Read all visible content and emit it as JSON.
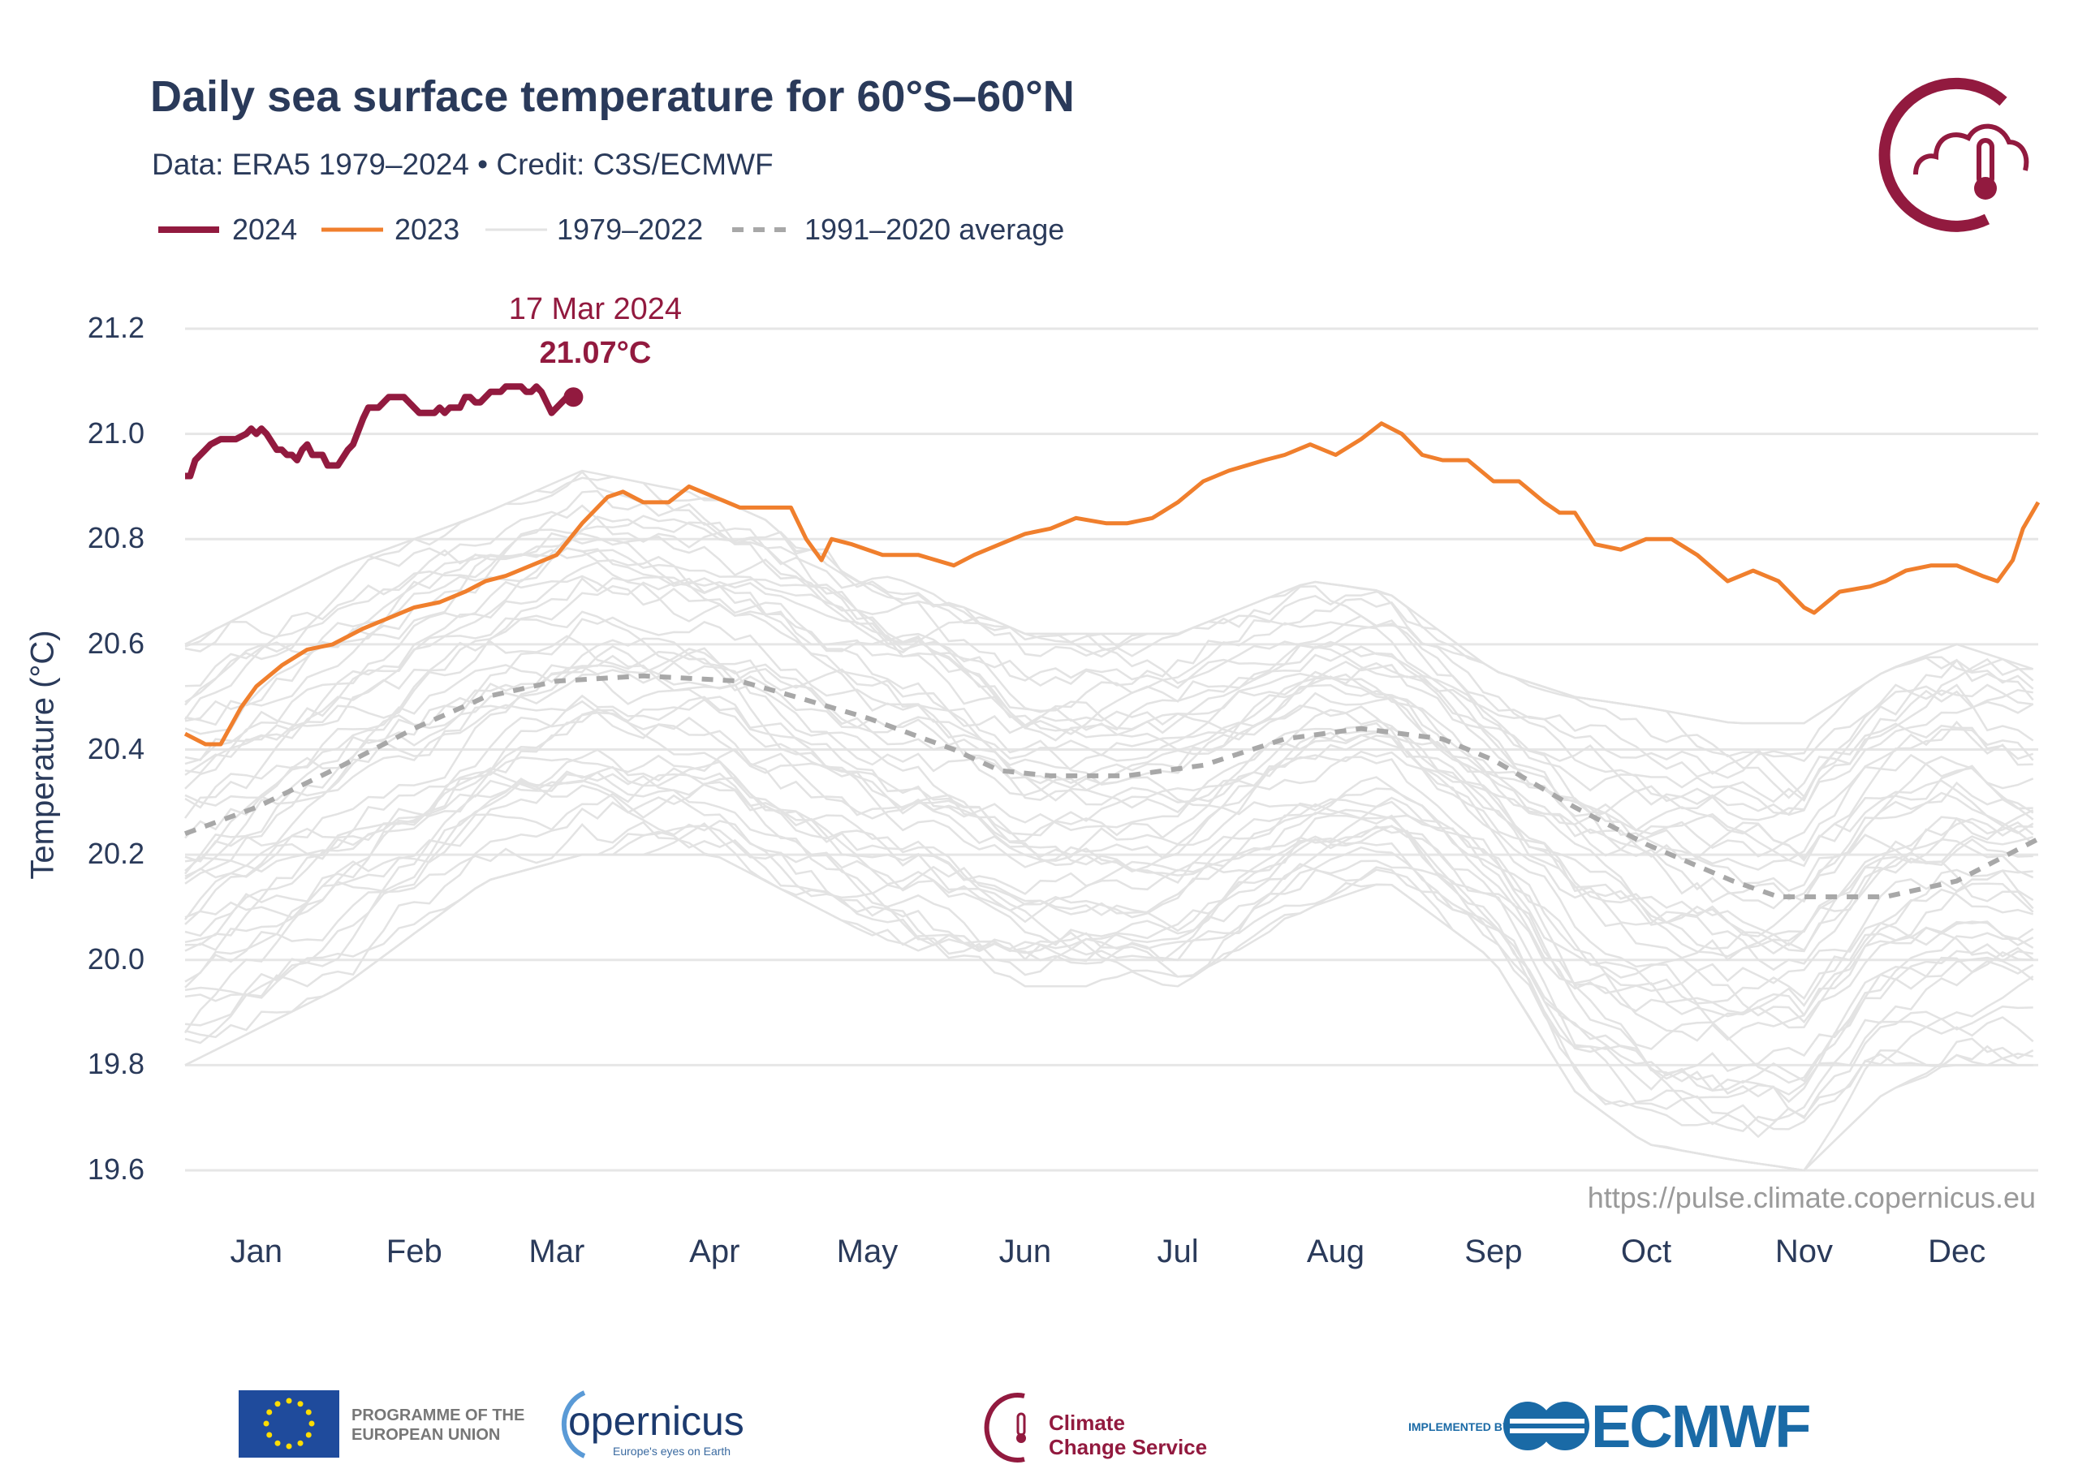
{
  "header": {
    "title": "Daily sea surface temperature for 60°S–60°N",
    "subtitle": "Data: ERA5 1979–2024 • Credit: C3S/ECMWF",
    "url": "https://pulse.climate.copernicus.eu"
  },
  "logos": {
    "c3s_emblem": "cloud-thermometer-crescent",
    "eu_text_1": "PROGRAMME OF THE",
    "eu_text_2": "EUROPEAN UNION",
    "copernicus": "opernicus",
    "copernicus_tagline": "Europe's eyes on Earth",
    "c3s_1": "Climate",
    "c3s_2": "Change Service",
    "ecmwf_prefix": "IMPLEMENTED BY",
    "ecmwf": "ECMWF"
  },
  "colors": {
    "s2024": "#921a3f",
    "s2023": "#f07f2d",
    "history": "#e3e3e3",
    "average": "#a8a8a8",
    "text": "#2a3a5a",
    "grid": "#e6e6e6"
  },
  "chart_data": {
    "type": "line",
    "title": "Daily sea surface temperature for 60°S–60°N",
    "ylabel": "Temperature (°C)",
    "xlabel": "",
    "ylim": [
      19.6,
      21.2
    ],
    "yticks": [
      "19.6",
      "19.8",
      "20.0",
      "20.2",
      "20.4",
      "20.6",
      "20.8",
      "21.0",
      "21.2"
    ],
    "xticks": [
      "Jan",
      "Feb",
      "Mar",
      "Apr",
      "May",
      "Jun",
      "Jul",
      "Aug",
      "Sep",
      "Oct",
      "Nov",
      "Dec"
    ],
    "grid": true,
    "legend_placement": "top-left",
    "legend": [
      "2024",
      "2023",
      "1979–2022",
      "1991–2020 average"
    ],
    "annotation": {
      "date": "17 Mar 2024",
      "value": "21.07°C",
      "point": [
        "2024-03-17",
        21.07
      ]
    },
    "series": [
      {
        "name": "2024",
        "style": "solid-thick",
        "points": [
          [
            "2024-01-01",
            20.92
          ],
          [
            "2024-01-02",
            20.92
          ],
          [
            "2024-01-03",
            20.95
          ],
          [
            "2024-01-04",
            20.96
          ],
          [
            "2024-01-06",
            20.98
          ],
          [
            "2024-01-08",
            20.99
          ],
          [
            "2024-01-11",
            20.99
          ],
          [
            "2024-01-13",
            21.0
          ],
          [
            "2024-01-14",
            21.01
          ],
          [
            "2024-01-15",
            21.0
          ],
          [
            "2024-01-16",
            21.01
          ],
          [
            "2024-01-17",
            21.0
          ],
          [
            "2024-01-19",
            20.97
          ],
          [
            "2024-01-20",
            20.97
          ],
          [
            "2024-01-21",
            20.96
          ],
          [
            "2024-01-22",
            20.96
          ],
          [
            "2024-01-23",
            20.95
          ],
          [
            "2024-01-24",
            20.97
          ],
          [
            "2024-01-25",
            20.98
          ],
          [
            "2024-01-26",
            20.96
          ],
          [
            "2024-01-28",
            20.96
          ],
          [
            "2024-01-29",
            20.94
          ],
          [
            "2024-01-31",
            20.94
          ],
          [
            "2024-02-02",
            20.97
          ],
          [
            "2024-02-03",
            20.98
          ],
          [
            "2024-02-05",
            21.03
          ],
          [
            "2024-02-06",
            21.05
          ],
          [
            "2024-02-08",
            21.05
          ],
          [
            "2024-02-10",
            21.07
          ],
          [
            "2024-02-13",
            21.07
          ],
          [
            "2024-02-16",
            21.04
          ],
          [
            "2024-02-19",
            21.04
          ],
          [
            "2024-02-20",
            21.05
          ],
          [
            "2024-02-21",
            21.04
          ],
          [
            "2024-02-22",
            21.05
          ],
          [
            "2024-02-24",
            21.05
          ],
          [
            "2024-02-25",
            21.07
          ],
          [
            "2024-02-26",
            21.07
          ],
          [
            "2024-02-27",
            21.06
          ],
          [
            "2024-02-28",
            21.06
          ],
          [
            "2024-03-01",
            21.07
          ],
          [
            "2024-03-02",
            21.08
          ],
          [
            "2024-03-04",
            21.08
          ],
          [
            "2024-03-05",
            21.09
          ],
          [
            "2024-03-08",
            21.09
          ],
          [
            "2024-03-09",
            21.08
          ],
          [
            "2024-03-10",
            21.08
          ],
          [
            "2024-03-11",
            21.09
          ],
          [
            "2024-03-12",
            21.08
          ],
          [
            "2024-03-13",
            21.06
          ],
          [
            "2024-03-14",
            21.04
          ],
          [
            "2024-03-15",
            21.05
          ],
          [
            "2024-03-17",
            21.07
          ]
        ]
      },
      {
        "name": "2023",
        "style": "solid",
        "points": [
          [
            "2023-01-01",
            20.43
          ],
          [
            "2023-01-05",
            20.41
          ],
          [
            "2023-01-08",
            20.41
          ],
          [
            "2023-01-12",
            20.48
          ],
          [
            "2023-01-15",
            20.52
          ],
          [
            "2023-01-20",
            20.56
          ],
          [
            "2023-01-25",
            20.59
          ],
          [
            "2023-01-30",
            20.6
          ],
          [
            "2023-02-05",
            20.63
          ],
          [
            "2023-02-10",
            20.65
          ],
          [
            "2023-02-15",
            20.67
          ],
          [
            "2023-02-20",
            20.68
          ],
          [
            "2023-02-25",
            20.7
          ],
          [
            "2023-03-01",
            20.72
          ],
          [
            "2023-03-05",
            20.73
          ],
          [
            "2023-03-10",
            20.75
          ],
          [
            "2023-03-15",
            20.77
          ],
          [
            "2023-03-20",
            20.83
          ],
          [
            "2023-03-25",
            20.88
          ],
          [
            "2023-03-28",
            20.89
          ],
          [
            "2023-04-01",
            20.87
          ],
          [
            "2023-04-06",
            20.87
          ],
          [
            "2023-04-10",
            20.9
          ],
          [
            "2023-04-15",
            20.88
          ],
          [
            "2023-04-20",
            20.86
          ],
          [
            "2023-04-25",
            20.86
          ],
          [
            "2023-04-30",
            20.86
          ],
          [
            "2023-05-03",
            20.8
          ],
          [
            "2023-05-06",
            20.76
          ],
          [
            "2023-05-08",
            20.8
          ],
          [
            "2023-05-12",
            20.79
          ],
          [
            "2023-05-18",
            20.77
          ],
          [
            "2023-05-25",
            20.77
          ],
          [
            "2023-06-01",
            20.75
          ],
          [
            "2023-06-05",
            20.77
          ],
          [
            "2023-06-10",
            20.79
          ],
          [
            "2023-06-15",
            20.81
          ],
          [
            "2023-06-20",
            20.82
          ],
          [
            "2023-06-25",
            20.84
          ],
          [
            "2023-07-01",
            20.83
          ],
          [
            "2023-07-05",
            20.83
          ],
          [
            "2023-07-10",
            20.84
          ],
          [
            "2023-07-15",
            20.87
          ],
          [
            "2023-07-20",
            20.91
          ],
          [
            "2023-07-25",
            20.93
          ],
          [
            "2023-08-01",
            20.95
          ],
          [
            "2023-08-05",
            20.96
          ],
          [
            "2023-08-10",
            20.98
          ],
          [
            "2023-08-15",
            20.96
          ],
          [
            "2023-08-20",
            20.99
          ],
          [
            "2023-08-24",
            21.02
          ],
          [
            "2023-08-28",
            21.0
          ],
          [
            "2023-09-01",
            20.96
          ],
          [
            "2023-09-05",
            20.95
          ],
          [
            "2023-09-10",
            20.95
          ],
          [
            "2023-09-15",
            20.91
          ],
          [
            "2023-09-20",
            20.91
          ],
          [
            "2023-09-25",
            20.87
          ],
          [
            "2023-09-28",
            20.85
          ],
          [
            "2023-10-01",
            20.85
          ],
          [
            "2023-10-05",
            20.79
          ],
          [
            "2023-10-10",
            20.78
          ],
          [
            "2023-10-15",
            20.8
          ],
          [
            "2023-10-20",
            20.8
          ],
          [
            "2023-10-25",
            20.77
          ],
          [
            "2023-10-31",
            20.72
          ],
          [
            "2023-11-05",
            20.74
          ],
          [
            "2023-11-10",
            20.72
          ],
          [
            "2023-11-15",
            20.67
          ],
          [
            "2023-11-17",
            20.66
          ],
          [
            "2023-11-22",
            20.7
          ],
          [
            "2023-11-28",
            20.71
          ],
          [
            "2023-12-01",
            20.72
          ],
          [
            "2023-12-05",
            20.74
          ],
          [
            "2023-12-10",
            20.75
          ],
          [
            "2023-12-15",
            20.75
          ],
          [
            "2023-12-20",
            20.73
          ],
          [
            "2023-12-23",
            20.72
          ],
          [
            "2023-12-26",
            20.76
          ],
          [
            "2023-12-28",
            20.82
          ],
          [
            "2023-12-31",
            20.87
          ]
        ]
      },
      {
        "name": "1979–2022",
        "style": "thin-gray-range",
        "envelope": [
          [
            "01-01",
            19.8,
            20.6
          ],
          [
            "02-01",
            19.95,
            20.75
          ],
          [
            "03-01",
            20.15,
            20.85
          ],
          [
            "03-20",
            20.2,
            20.93
          ],
          [
            "04-15",
            20.2,
            20.88
          ],
          [
            "05-15",
            20.05,
            20.75
          ],
          [
            "06-15",
            19.95,
            20.62
          ],
          [
            "07-15",
            19.95,
            20.62
          ],
          [
            "08-10",
            20.1,
            20.72
          ],
          [
            "08-25",
            20.15,
            20.7
          ],
          [
            "09-15",
            20.0,
            20.55
          ],
          [
            "10-01",
            19.75,
            20.5
          ],
          [
            "10-15",
            19.65,
            20.48
          ],
          [
            "11-01",
            19.62,
            20.45
          ],
          [
            "11-15",
            19.6,
            20.45
          ],
          [
            "12-01",
            19.75,
            20.55
          ],
          [
            "12-15",
            19.8,
            20.6
          ],
          [
            "12-31",
            19.8,
            20.55
          ]
        ]
      },
      {
        "name": "1991–2020 average",
        "style": "dashed",
        "points": [
          [
            "01-01",
            20.24
          ],
          [
            "01-15",
            20.29
          ],
          [
            "02-01",
            20.37
          ],
          [
            "02-15",
            20.44
          ],
          [
            "03-01",
            20.5
          ],
          [
            "03-15",
            20.53
          ],
          [
            "04-01",
            20.54
          ],
          [
            "04-20",
            20.53
          ],
          [
            "05-01",
            20.5
          ],
          [
            "05-15",
            20.46
          ],
          [
            "06-01",
            20.4
          ],
          [
            "06-10",
            20.36
          ],
          [
            "06-20",
            20.35
          ],
          [
            "07-05",
            20.35
          ],
          [
            "07-20",
            20.37
          ],
          [
            "08-05",
            20.42
          ],
          [
            "08-20",
            20.44
          ],
          [
            "09-05",
            20.42
          ],
          [
            "09-15",
            20.38
          ],
          [
            "10-01",
            20.29
          ],
          [
            "10-15",
            20.22
          ],
          [
            "11-01",
            20.15
          ],
          [
            "11-10",
            20.12
          ],
          [
            "12-01",
            20.12
          ],
          [
            "12-15",
            20.15
          ],
          [
            "12-31",
            20.23
          ]
        ]
      }
    ]
  }
}
